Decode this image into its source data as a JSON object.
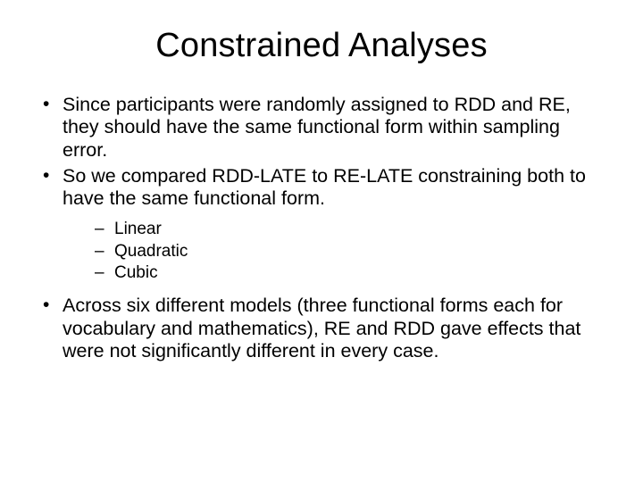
{
  "slide": {
    "title": "Constrained Analyses",
    "bullets": [
      {
        "text": "Since participants were randomly assigned to RDD and RE, they should have the same functional form within sampling error."
      },
      {
        "text": "So we compared RDD-LATE to RE-LATE constraining both to have the same functional form.",
        "sub": [
          "Linear",
          "Quadratic",
          "Cubic"
        ]
      },
      {
        "text": "Across six different models (three functional forms each for vocabulary and mathematics), RE and RDD gave effects that were not significantly different in every case."
      }
    ]
  },
  "style": {
    "background_color": "#ffffff",
    "text_color": "#000000",
    "title_fontsize": 38,
    "body_fontsize": 21.5,
    "sub_fontsize": 19,
    "font_family": "Arial"
  }
}
